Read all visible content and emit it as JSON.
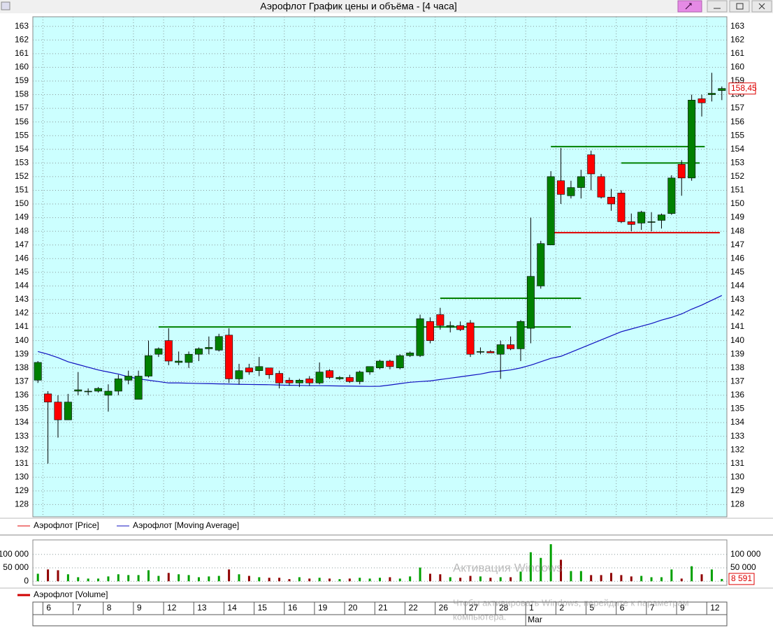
{
  "window": {
    "title": "Аэрофлот График цены и объёма - [4 часа]"
  },
  "chart_data": [
    {
      "type": "candlestick",
      "categories": [
        null,
        "6",
        null,
        null,
        "7",
        null,
        null,
        "8",
        null,
        null,
        "9",
        null,
        null,
        "12",
        null,
        null,
        "13",
        null,
        null,
        "14",
        null,
        null,
        "15",
        null,
        null,
        "16",
        null,
        null,
        "19",
        null,
        null,
        "20",
        null,
        null,
        "21",
        null,
        null,
        "22",
        null,
        null,
        "26",
        null,
        null,
        "27",
        null,
        null,
        "28",
        null,
        null,
        "1",
        null,
        null,
        "2",
        null,
        null,
        "5",
        null,
        null,
        "6",
        null,
        null,
        "7",
        null,
        null,
        "9",
        null,
        null,
        "12",
        null
      ],
      "months": [
        {
          "label": "Mar",
          "index": 49
        }
      ],
      "ylim": [
        127.1,
        163.7
      ],
      "yticks": [
        128,
        129,
        130,
        131,
        132,
        133,
        134,
        135,
        136,
        137,
        138,
        139,
        140,
        141,
        142,
        143,
        144,
        145,
        146,
        147,
        148,
        149,
        150,
        151,
        152,
        153,
        154,
        155,
        156,
        157,
        158,
        159,
        160,
        161,
        162,
        163
      ],
      "grid": true,
      "series": [
        {
          "name": "Аэрофлот [Price]",
          "color": "#e00000",
          "up_color": "#008000",
          "down_color": "#ff0000",
          "open": [
            137.1,
            136.1,
            135.5,
            134.2,
            136.3,
            136.3,
            136.3,
            136.0,
            136.3,
            137.1,
            135.7,
            137.4,
            139.0,
            140.0,
            138.4,
            138.4,
            139.0,
            139.4,
            139.3,
            140.4,
            137.2,
            138.0,
            137.8,
            138.0,
            137.6,
            137.1,
            136.9,
            137.2,
            136.9,
            137.8,
            137.2,
            137.3,
            137.0,
            137.7,
            138.0,
            138.5,
            138.0,
            138.9,
            138.9,
            141.4,
            141.9,
            141.0,
            141.1,
            141.3,
            139.2,
            139.2,
            139.0,
            139.7,
            139.4,
            140.9,
            144.0,
            147.0,
            151.7,
            150.6,
            151.2,
            153.6,
            152.0,
            150.5,
            150.8,
            148.7,
            148.6,
            148.7,
            148.8,
            149.3,
            152.9,
            151.9,
            157.7,
            158.0,
            158.3
          ],
          "high": [
            138.5,
            136.3,
            136.0,
            136.1,
            137.7,
            136.5,
            136.6,
            136.8,
            137.5,
            137.8,
            137.8,
            140.0,
            139.5,
            140.9,
            139.2,
            139.2,
            139.5,
            140.3,
            140.5,
            140.9,
            138.3,
            138.3,
            138.8,
            138.0,
            137.8,
            137.3,
            137.2,
            137.4,
            138.4,
            137.9,
            137.4,
            137.5,
            137.8,
            138.1,
            138.6,
            138.6,
            139.0,
            139.2,
            141.9,
            141.7,
            142.4,
            141.4,
            141.4,
            141.5,
            139.5,
            139.3,
            140.0,
            140.3,
            141.5,
            149.0,
            147.3,
            152.4,
            154.1,
            151.7,
            152.5,
            153.9,
            152.2,
            151.1,
            151.0,
            149.3,
            149.5,
            149.4,
            149.3,
            152.1,
            153.2,
            158.0,
            158.0,
            159.6,
            158.6
          ],
          "low": [
            136.9,
            131.0,
            132.9,
            134.2,
            136.0,
            136.0,
            136.2,
            134.8,
            136.0,
            136.8,
            135.7,
            137.3,
            138.8,
            138.2,
            138.2,
            138.0,
            138.5,
            139.0,
            139.2,
            136.9,
            136.8,
            137.5,
            137.4,
            137.2,
            136.5,
            136.7,
            136.6,
            136.7,
            136.8,
            137.2,
            137.1,
            136.9,
            136.8,
            137.5,
            137.9,
            137.9,
            137.9,
            138.8,
            138.8,
            139.8,
            140.8,
            140.6,
            140.7,
            138.8,
            139.0,
            139.1,
            137.2,
            139.3,
            138.5,
            139.8,
            143.8,
            147.0,
            150.0,
            150.4,
            150.4,
            151.0,
            150.4,
            149.5,
            148.6,
            148.0,
            148.1,
            148.0,
            148.2,
            149.2,
            150.6,
            151.7,
            156.4,
            157.5,
            157.6
          ],
          "close": [
            138.4,
            135.5,
            134.2,
            135.5,
            136.4,
            136.3,
            136.5,
            136.3,
            137.2,
            137.4,
            137.4,
            138.9,
            139.4,
            138.5,
            138.5,
            139.0,
            139.4,
            139.5,
            140.3,
            137.2,
            137.8,
            137.7,
            138.1,
            137.5,
            136.9,
            136.9,
            137.1,
            136.9,
            137.7,
            137.3,
            137.3,
            137.0,
            137.7,
            138.1,
            138.5,
            138.1,
            138.9,
            139.1,
            141.6,
            140.0,
            141.1,
            141.1,
            140.8,
            139.0,
            139.2,
            139.1,
            139.7,
            139.4,
            141.4,
            144.7,
            147.1,
            152.0,
            150.7,
            151.2,
            152.0,
            152.2,
            150.5,
            150.0,
            148.7,
            148.5,
            149.4,
            148.7,
            149.2,
            151.9,
            151.9,
            157.6,
            157.4,
            158.1,
            158.45
          ],
          "last_label": "158,45"
        },
        {
          "name": "Аэрофлот [Moving Average]",
          "color": "#1010c0",
          "values": [
            139.2,
            139.0,
            138.75,
            138.45,
            138.25,
            138.05,
            137.85,
            137.7,
            137.55,
            137.35,
            137.2,
            137.1,
            137.0,
            136.9,
            136.9,
            136.88,
            136.86,
            136.85,
            136.83,
            136.82,
            136.8,
            136.79,
            136.78,
            136.77,
            136.75,
            136.73,
            136.72,
            136.7,
            136.7,
            136.69,
            136.68,
            136.67,
            136.66,
            136.65,
            136.66,
            136.75,
            136.85,
            136.95,
            137.0,
            137.05,
            137.15,
            137.25,
            137.35,
            137.45,
            137.55,
            137.7,
            137.77,
            137.85,
            138.0,
            138.2,
            138.45,
            138.7,
            138.85,
            139.15,
            139.45,
            139.75,
            140.05,
            140.35,
            140.65,
            140.85,
            141.05,
            141.25,
            141.5,
            141.7,
            141.95,
            142.3,
            142.6,
            142.95,
            143.3
          ]
        }
      ],
      "levels": [
        {
          "value": 141.0,
          "start": 12,
          "end": 53,
          "color": "#008000"
        },
        {
          "value": 143.1,
          "start": 40,
          "end": 54,
          "color": "#008000"
        },
        {
          "value": 154.2,
          "start": 51,
          "end": 66.3,
          "color": "#008000"
        },
        {
          "value": 153.0,
          "start": 58,
          "end": 65.8,
          "color": "#008000"
        },
        {
          "value": 147.9,
          "start": 51,
          "end": 67.8,
          "color": "#e00000"
        }
      ]
    },
    {
      "type": "bar",
      "ylim": [
        -15000,
        154000
      ],
      "yticks": [
        {
          "value": 0,
          "label": "0"
        },
        {
          "value": 50000,
          "label": "50 000"
        },
        {
          "value": 100000,
          "label": "100 000"
        }
      ],
      "series": [
        {
          "name": "Аэрофлот [Volume]",
          "color": "#d00000",
          "up_color": "#00a000",
          "down_color": "#900000",
          "values": [
            28000,
            44000,
            41000,
            26000,
            15000,
            10000,
            10000,
            18000,
            26000,
            23000,
            23000,
            41000,
            20000,
            31000,
            26000,
            23000,
            15000,
            18000,
            20000,
            44000,
            26000,
            20000,
            15000,
            13000,
            13000,
            8000,
            15000,
            10000,
            13000,
            10000,
            8000,
            10000,
            13000,
            10000,
            13000,
            15000,
            10000,
            18000,
            51000,
            28000,
            26000,
            15000,
            13000,
            20000,
            18000,
            13000,
            15000,
            15000,
            36000,
            108000,
            87000,
            138000,
            80000,
            38000,
            38000,
            23000,
            23000,
            31000,
            23000,
            18000,
            20000,
            15000,
            15000,
            44000,
            10000,
            56000,
            26000,
            44000,
            8591
          ],
          "last_label": "8 591"
        }
      ]
    }
  ],
  "watermark": {
    "title": "Активация Windows",
    "lines": [
      "Чтобы активировать Windows, перейдите к параметрам",
      "компьютера."
    ]
  }
}
